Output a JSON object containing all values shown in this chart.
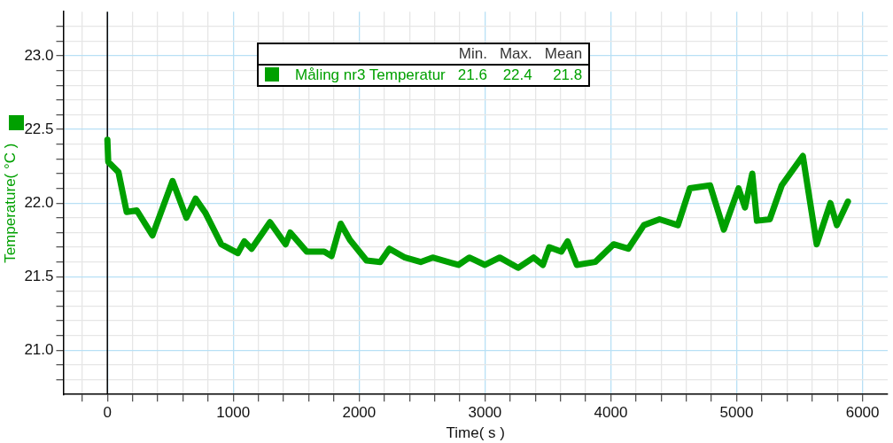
{
  "chart_data": {
    "type": "line",
    "xlabel": "Time( s )",
    "ylabel": "Temperature( °C )",
    "x": [
      0,
      7,
      88,
      153,
      234,
      358,
      518,
      628,
      701,
      781,
      905,
      1036,
      1088,
      1146,
      1292,
      1416,
      1453,
      1584,
      1723,
      1781,
      1854,
      1927,
      2059,
      2168,
      2241,
      2365,
      2489,
      2584,
      2789,
      2876,
      3000,
      3117,
      3263,
      3387,
      3460,
      3511,
      3606,
      3657,
      3730,
      3876,
      4022,
      4139,
      4263,
      4387,
      4533,
      4628,
      4789,
      4898,
      5015,
      5066,
      5124,
      5161,
      5263,
      5358,
      5526,
      5636,
      5745,
      5796,
      5884
    ],
    "series": [
      {
        "name": "Måling nr3 Temperatur",
        "color": "#00a000",
        "values": [
          22.43,
          22.28,
          22.21,
          21.94,
          21.95,
          21.78,
          22.15,
          21.9,
          22.03,
          21.93,
          21.72,
          21.66,
          21.74,
          21.69,
          21.87,
          21.72,
          21.8,
          21.67,
          21.67,
          21.64,
          21.86,
          21.75,
          21.61,
          21.6,
          21.69,
          21.63,
          21.6,
          21.63,
          21.58,
          21.63,
          21.58,
          21.63,
          21.56,
          21.63,
          21.58,
          21.7,
          21.67,
          21.74,
          21.58,
          21.6,
          21.72,
          21.69,
          21.85,
          21.89,
          21.85,
          22.1,
          22.12,
          21.82,
          22.1,
          21.97,
          22.2,
          21.88,
          21.89,
          22.12,
          22.32,
          21.72,
          22.0,
          21.85,
          22.01
        ]
      }
    ],
    "annotations": [
      "Min.",
      "Max.",
      "Mean",
      "21.6",
      "22.4",
      "21.8"
    ],
    "xlim": [
      -350,
      6200
    ],
    "xticks": [
      {
        "value": -200,
        "label": null
      },
      0,
      {
        "value": 200,
        "label": null
      },
      {
        "value": 400,
        "label": null
      },
      {
        "value": 600,
        "label": null
      },
      {
        "value": 800,
        "label": null
      },
      1000,
      {
        "value": 1200,
        "label": null
      },
      {
        "value": 1400,
        "label": null
      },
      {
        "value": 1600,
        "label": null
      },
      {
        "value": 1800,
        "label": null
      },
      2000,
      {
        "value": 2200,
        "label": null
      },
      {
        "value": 2400,
        "label": null
      },
      {
        "value": 2600,
        "label": null
      },
      {
        "value": 2800,
        "label": null
      },
      3000,
      {
        "value": 3200,
        "label": null
      },
      {
        "value": 3400,
        "label": null
      },
      {
        "value": 3600,
        "label": null
      },
      {
        "value": 3800,
        "label": null
      },
      4000,
      {
        "value": 4200,
        "label": null
      },
      {
        "value": 4400,
        "label": null
      },
      {
        "value": 4600,
        "label": null
      },
      {
        "value": 4800,
        "label": null
      },
      5000,
      {
        "value": 5200,
        "label": null
      },
      {
        "value": 5400,
        "label": null
      },
      {
        "value": 5600,
        "label": null
      },
      {
        "value": 5800,
        "label": null
      },
      6000
    ],
    "ylim": [
      20.7,
      23.3
    ],
    "yticks": [
      {
        "value": 20.8,
        "label": null
      },
      {
        "value": 20.9,
        "label": null
      },
      {
        "value": 21,
        "label": "21.0"
      },
      {
        "value": 21.1,
        "label": null
      },
      {
        "value": 21.2,
        "label": null
      },
      {
        "value": 21.3,
        "label": null
      },
      {
        "value": 21.4,
        "label": null
      },
      21.5,
      {
        "value": 21.6,
        "label": null
      },
      {
        "value": 21.7,
        "label": null
      },
      {
        "value": 21.8,
        "label": null
      },
      {
        "value": 21.9,
        "label": null
      },
      {
        "value": 22,
        "label": "22.0"
      },
      {
        "value": 22.1,
        "label": null
      },
      {
        "value": 22.2,
        "label": null
      },
      {
        "value": 22.3,
        "label": null
      },
      {
        "value": 22.4,
        "label": null
      },
      22.5,
      {
        "value": 22.6,
        "label": null
      },
      {
        "value": 22.7,
        "label": null
      },
      {
        "value": 22.8,
        "label": null
      },
      {
        "value": 22.9,
        "label": null
      },
      {
        "value": 23,
        "label": "23.0"
      },
      {
        "value": 23.1,
        "label": null
      },
      {
        "value": 23.2,
        "label": null
      }
    ],
    "ref_lines": [
      {
        "axis": "x",
        "value": 0,
        "color": "#000000"
      }
    ],
    "grid": true,
    "legend": "top",
    "marker": "none",
    "line_style": "solid"
  }
}
